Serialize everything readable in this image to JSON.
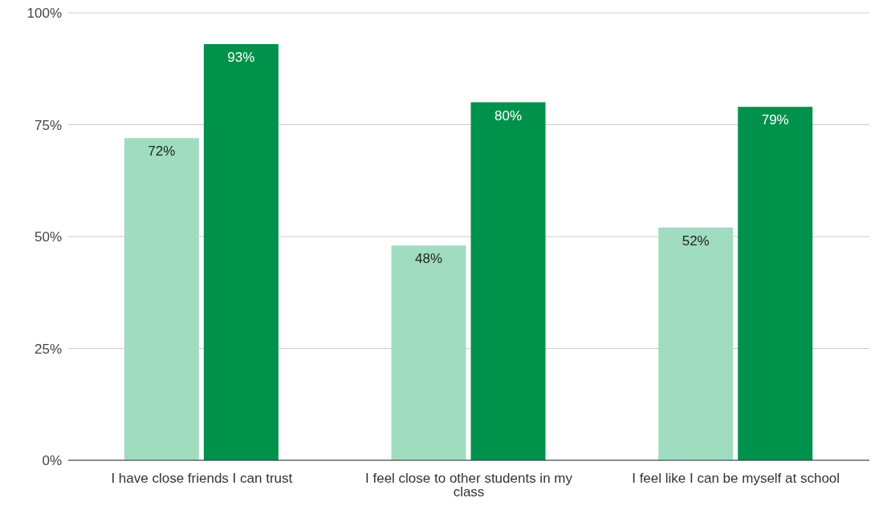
{
  "chart_data": {
    "type": "bar",
    "categories": [
      "I have close friends I can trust",
      "I feel close to other students in my class",
      "I feel like I can be myself at school"
    ],
    "series": [
      {
        "color": "#a0dcc0",
        "values": [
          72,
          48,
          52
        ],
        "value_labels": [
          "72%",
          "48%",
          "52%"
        ]
      },
      {
        "color": "#00914b",
        "values": [
          93,
          80,
          79
        ],
        "value_labels": [
          "93%",
          "80%",
          "79%"
        ]
      }
    ],
    "ylim": [
      0,
      100
    ],
    "yticks": [
      {
        "value": 0,
        "label": "0%"
      },
      {
        "value": 25,
        "label": "25%"
      },
      {
        "value": 50,
        "label": "50%"
      },
      {
        "value": 75,
        "label": "75%"
      },
      {
        "value": 100,
        "label": "100%"
      }
    ],
    "grid": "y"
  }
}
